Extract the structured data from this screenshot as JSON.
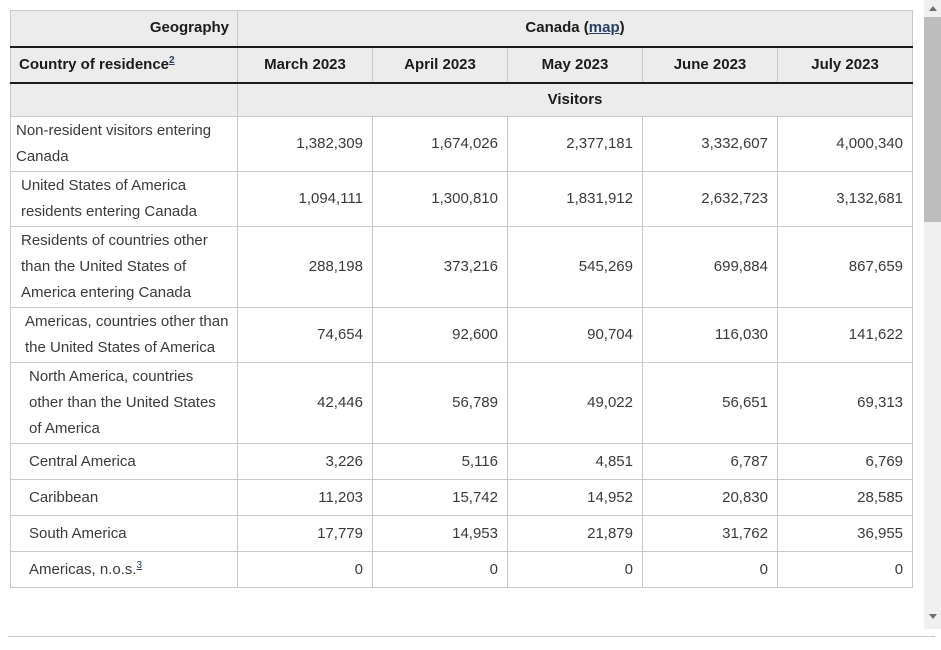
{
  "table": {
    "geography_label": "Geography",
    "geography_value": "Canada",
    "map_prefix": "(",
    "map_link_label": "map",
    "map_suffix": ")",
    "country_label": "Country of residence",
    "country_footnote": "2",
    "months": [
      "March 2023",
      "April 2023",
      "May 2023",
      "June 2023",
      "July 2023"
    ],
    "measure_label": "Visitors",
    "rows": [
      {
        "label": "Non-resident visitors entering Canada",
        "indent": 0,
        "footnote": "",
        "values": [
          "1,382,309",
          "1,674,026",
          "2,377,181",
          "3,332,607",
          "4,000,340"
        ]
      },
      {
        "label": "United States of America residents entering Canada",
        "indent": 1,
        "footnote": "",
        "values": [
          "1,094,111",
          "1,300,810",
          "1,831,912",
          "2,632,723",
          "3,132,681"
        ]
      },
      {
        "label": "Residents of countries other than the United States of America entering Canada",
        "indent": 1,
        "footnote": "",
        "values": [
          "288,198",
          "373,216",
          "545,269",
          "699,884",
          "867,659"
        ]
      },
      {
        "label": "Americas, countries other than the United States of America",
        "indent": 2,
        "footnote": "",
        "values": [
          "74,654",
          "92,600",
          "90,704",
          "116,030",
          "141,622"
        ]
      },
      {
        "label": "North America, countries other than the United States of America",
        "indent": 3,
        "footnote": "",
        "values": [
          "42,446",
          "56,789",
          "49,022",
          "56,651",
          "69,313"
        ]
      },
      {
        "label": "Central America",
        "indent": 3,
        "footnote": "",
        "values": [
          "3,226",
          "5,116",
          "4,851",
          "6,787",
          "6,769"
        ]
      },
      {
        "label": "Caribbean",
        "indent": 3,
        "footnote": "",
        "values": [
          "11,203",
          "15,742",
          "14,952",
          "20,830",
          "28,585"
        ]
      },
      {
        "label": "South America",
        "indent": 3,
        "footnote": "",
        "values": [
          "17,779",
          "14,953",
          "21,879",
          "31,762",
          "36,955"
        ]
      },
      {
        "label": "Americas, n.o.s.",
        "indent": 3,
        "footnote": "3",
        "values": [
          "0",
          "0",
          "0",
          "0",
          "0"
        ]
      }
    ]
  },
  "colors": {
    "header_bg": "#ececec",
    "link": "#284162",
    "heavy_border": "#1b1b1b",
    "light_border": "#c9c9c9"
  }
}
